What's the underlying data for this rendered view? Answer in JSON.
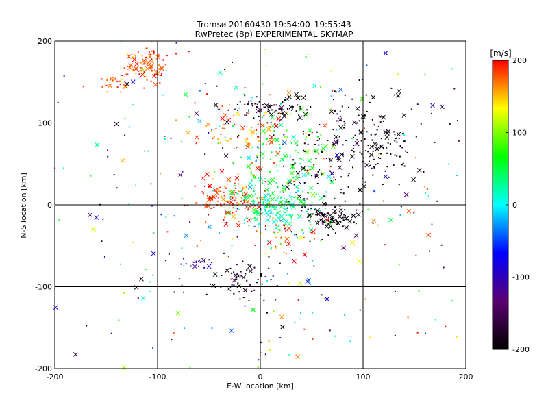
{
  "chart_data": {
    "type": "scatter",
    "title": "Tromsø 20160430 19:54:00–19:55:43",
    "subtitle": "RwPretec (8p) EXPERIMENTAL SKYMAP",
    "xlabel": "E-W location [km]",
    "ylabel": "N-S location [km]",
    "xlim": [
      -200,
      200
    ],
    "ylim": [
      -200,
      200
    ],
    "xticks": [
      -200,
      -100,
      0,
      100,
      200
    ],
    "yticks": [
      -200,
      -100,
      0,
      100,
      200
    ],
    "grid": true,
    "marker_types": [
      "dot",
      "cross"
    ],
    "colorbar": {
      "label": "[m/s]",
      "min": -200,
      "max": 200,
      "ticks": [
        200,
        100,
        0,
        -100,
        -200
      ],
      "colormap": [
        "#000000",
        "#5a0070",
        "#0000ff",
        "#00ffff",
        "#00ff00",
        "#ffff00",
        "#ff0000"
      ]
    },
    "clusters": [
      {
        "x": -112,
        "y": 172,
        "spread": [
          12,
          10
        ],
        "velocity": 185,
        "count": 90
      },
      {
        "x": -140,
        "y": 150,
        "spread": [
          10,
          6
        ],
        "velocity": 180,
        "count": 25
      },
      {
        "x": 15,
        "y": 118,
        "spread": [
          22,
          8
        ],
        "velocity": -190,
        "count": 80
      },
      {
        "x": 100,
        "y": 80,
        "spread": [
          28,
          28
        ],
        "velocity": -195,
        "count": 170
      },
      {
        "x": 55,
        "y": 40,
        "spread": [
          22,
          40
        ],
        "velocity": -190,
        "count": 90
      },
      {
        "x": 70,
        "y": -15,
        "spread": [
          12,
          8
        ],
        "velocity": -195,
        "count": 70
      },
      {
        "x": -25,
        "y": 5,
        "spread": [
          18,
          14
        ],
        "velocity": 185,
        "count": 130
      },
      {
        "x": 15,
        "y": 0,
        "spread": [
          22,
          14
        ],
        "velocity": 30,
        "count": 170
      },
      {
        "x": 20,
        "y": 50,
        "spread": [
          25,
          35
        ],
        "velocity": 60,
        "count": 140
      },
      {
        "x": -20,
        "y": 90,
        "spread": [
          25,
          18
        ],
        "velocity": 175,
        "count": 80
      },
      {
        "x": -20,
        "y": -90,
        "spread": [
          15,
          12
        ],
        "velocity": -195,
        "count": 55
      },
      {
        "x": -60,
        "y": -72,
        "spread": [
          10,
          4
        ],
        "velocity": -110,
        "count": 18
      },
      {
        "x": 25,
        "y": -40,
        "spread": [
          14,
          12
        ],
        "velocity": 185,
        "count": 30
      },
      {
        "x": 0,
        "y": 0,
        "spread": [
          120,
          120
        ],
        "velocity": 0,
        "count": 380
      }
    ]
  }
}
